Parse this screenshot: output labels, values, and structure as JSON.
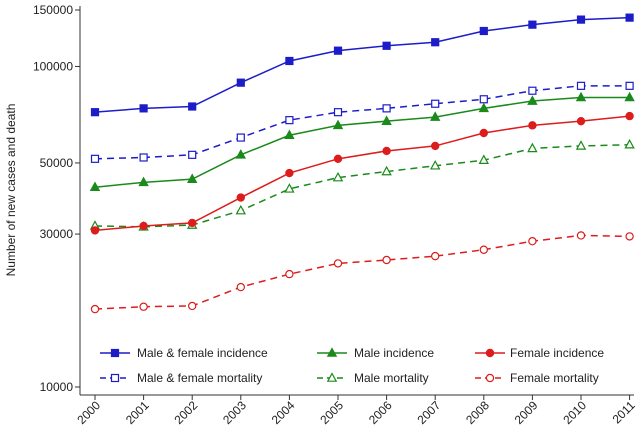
{
  "chart_data": {
    "type": "line",
    "ylabel": "Number of new cases and death",
    "xlabel": "",
    "y_scale": "log",
    "ylim": [
      10000,
      150000
    ],
    "y_ticks": [
      10000,
      30000,
      50000,
      100000,
      150000
    ],
    "y_tick_labels": [
      "10000",
      "30000",
      "50000",
      "100000",
      "150000"
    ],
    "x": [
      "2000",
      "2001",
      "2002",
      "2003",
      "2004",
      "2005",
      "2006",
      "2007",
      "2008",
      "2009",
      "2010",
      "2011"
    ],
    "legend_position": "inside-bottom",
    "grid": false,
    "series": [
      {
        "name": "Male & female incidence",
        "color": "#1c1cc9",
        "dashed": false,
        "marker": "square",
        "filled": true,
        "values": [
          72000,
          74000,
          75000,
          89000,
          104000,
          112000,
          116000,
          119000,
          129000,
          135000,
          140000,
          142000
        ]
      },
      {
        "name": "Male & female mortality",
        "color": "#1c1cc9",
        "dashed": true,
        "marker": "square",
        "filled": false,
        "values": [
          51500,
          52000,
          53000,
          60000,
          68000,
          72000,
          74000,
          76500,
          79000,
          84000,
          87000,
          87000
        ]
      },
      {
        "name": "Male incidence",
        "color": "#1a8a1a",
        "dashed": false,
        "marker": "triangle",
        "filled": true,
        "values": [
          42000,
          43500,
          44500,
          53000,
          61000,
          65500,
          67500,
          69500,
          74000,
          78000,
          80000,
          80000
        ]
      },
      {
        "name": "Male mortality",
        "color": "#1a8a1a",
        "dashed": true,
        "marker": "triangle",
        "filled": false,
        "values": [
          31800,
          31600,
          32000,
          35500,
          41500,
          45000,
          47000,
          49000,
          51000,
          55500,
          56500,
          57000
        ]
      },
      {
        "name": "Female incidence",
        "color": "#dd1c1c",
        "dashed": false,
        "marker": "circle",
        "filled": true,
        "values": [
          30800,
          31800,
          32500,
          39000,
          46500,
          51500,
          54500,
          56500,
          62000,
          65500,
          67500,
          70000
        ]
      },
      {
        "name": "Female mortality",
        "color": "#dd1c1c",
        "dashed": true,
        "marker": "circle",
        "filled": false,
        "values": [
          17500,
          17800,
          17900,
          20500,
          22500,
          24300,
          24900,
          25600,
          26800,
          28500,
          29700,
          29500
        ]
      }
    ]
  }
}
